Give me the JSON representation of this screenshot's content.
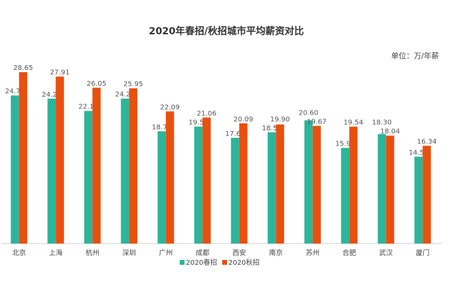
{
  "chart_data": {
    "type": "bar",
    "title": "2020年春招/秋招城市平均薪资对比",
    "unit_label": "单位：万/年薪",
    "categories": [
      "北京",
      "上海",
      "杭州",
      "深圳",
      "广州",
      "成都",
      "西安",
      "南京",
      "苏州",
      "合肥",
      "武汉",
      "厦门"
    ],
    "series": [
      {
        "name": "2020春招",
        "color": "#2cb59b",
        "values": [
          24.75,
          24.22,
          22.17,
          24.23,
          18.77,
          19.55,
          17.67,
          18.59,
          20.6,
          15.99,
          18.3,
          14.52
        ]
      },
      {
        "name": "2020秋招",
        "color": "#e9500e",
        "values": [
          28.65,
          27.91,
          26.05,
          25.95,
          22.09,
          21.06,
          20.09,
          19.9,
          19.67,
          19.54,
          18.04,
          16.34
        ]
      }
    ],
    "ylim": [
      0,
      32
    ],
    "grid": false,
    "legend_position": "bottom",
    "xlabel": "",
    "ylabel": ""
  }
}
